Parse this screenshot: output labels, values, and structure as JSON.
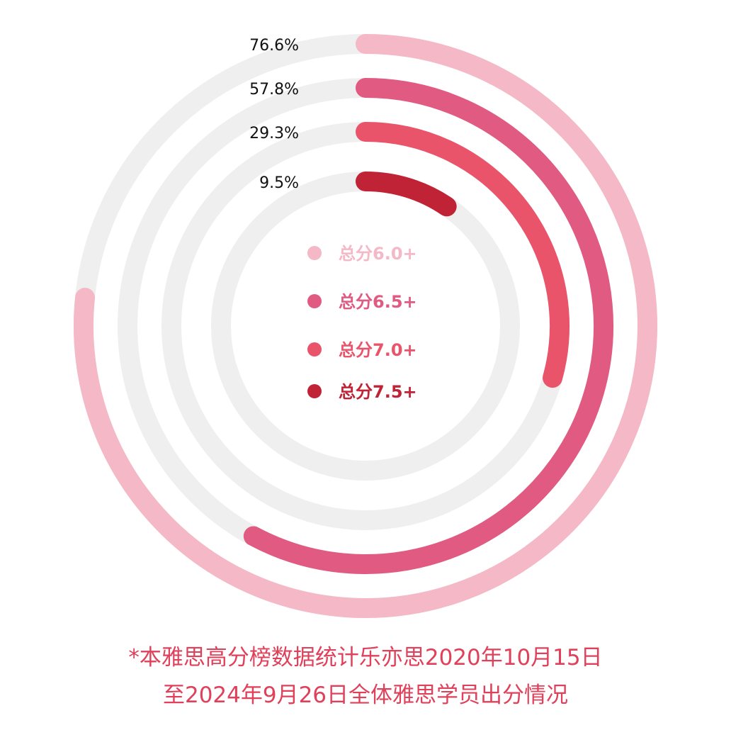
{
  "chart_data": {
    "type": "radial-bar",
    "unit": "%",
    "series": [
      {
        "name": "总分6.0+",
        "value": 76.6,
        "label": "76.6%",
        "color": "#f4b8c6"
      },
      {
        "name": "总分6.5+",
        "value": 57.8,
        "label": "57.8%",
        "color": "#e05a82"
      },
      {
        "name": "总分7.0+",
        "value": 29.3,
        "label": "29.3%",
        "color": "#e9546b"
      },
      {
        "name": "总分7.5+",
        "value": 9.5,
        "label": "9.5%",
        "color": "#c02335"
      }
    ],
    "track_color": "#efefef",
    "range": [
      0,
      100
    ],
    "legend_position": "center"
  },
  "footnote": {
    "line1": "*本雅思高分榜数据统计乐亦思2020年10月15日",
    "line2": "至2024年9月26日全体雅思学员出分情况"
  }
}
